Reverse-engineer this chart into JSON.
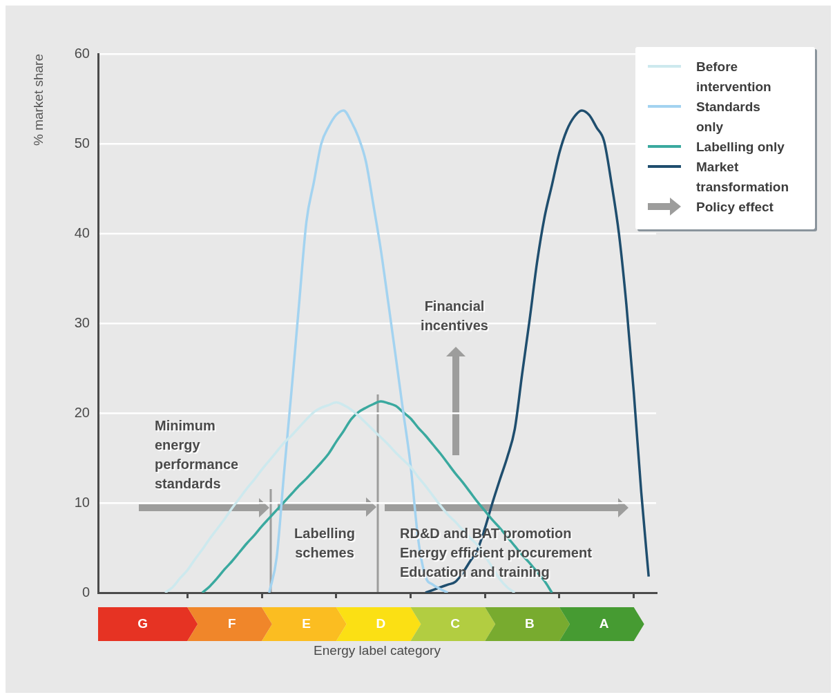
{
  "chart_data": {
    "type": "line",
    "xlabel": "Energy label category",
    "ylabel": "% market share",
    "categories": [
      null,
      null,
      null,
      null,
      null,
      null,
      "G",
      null,
      null,
      null,
      null,
      null,
      null,
      null,
      null,
      null,
      null,
      null,
      "F",
      null,
      null,
      null,
      null,
      null,
      null,
      null,
      null,
      null,
      "E",
      null,
      null,
      null,
      null,
      null,
      null,
      null,
      null,
      null,
      "D",
      null,
      null,
      null,
      null,
      null,
      null,
      null,
      null,
      null,
      "C",
      null,
      null,
      null,
      null,
      null,
      null,
      null,
      null,
      null,
      "B",
      null,
      null,
      null,
      null,
      null,
      null,
      null,
      null,
      null,
      "A",
      null,
      null,
      null,
      null,
      null,
      null,
      null
    ],
    "ylim": [
      0,
      60
    ],
    "yticks": [
      0,
      10,
      20,
      30,
      40,
      50,
      60
    ],
    "grid": "y",
    "legend": "top right",
    "series": [
      {
        "name": "Before intervention",
        "color": "#cde9ee",
        "values": [
          null,
          null,
          null,
          null,
          null,
          null,
          null,
          null,
          null,
          0,
          0.6,
          1.6,
          2.5,
          3.7,
          4.8,
          6.0,
          7.1,
          8.2,
          9.4,
          10.5,
          11.6,
          12.6,
          13.7,
          14.7,
          15.7,
          16.7,
          17.5,
          18.4,
          19.3,
          20.1,
          20.6,
          20.9,
          21.2,
          20.9,
          20.4,
          19.7,
          18.9,
          18.1,
          17.3,
          16.5,
          15.6,
          14.8,
          14.0,
          12.9,
          11.9,
          10.8,
          9.7,
          8.7,
          7.9,
          7.0,
          6.1,
          5.3,
          4.1,
          2.8,
          1.5,
          0.6,
          0,
          null,
          null,
          null,
          null,
          null,
          null,
          null,
          null,
          null,
          null,
          null,
          null,
          null,
          null,
          null,
          null,
          null,
          null,
          null
        ]
      },
      {
        "name": "Standards only",
        "color": "#a3d3f0",
        "values": [
          null,
          null,
          null,
          null,
          null,
          null,
          null,
          null,
          null,
          null,
          null,
          null,
          null,
          null,
          null,
          null,
          null,
          null,
          null,
          null,
          null,
          null,
          null,
          0,
          3.9,
          13.4,
          22.5,
          32,
          41.3,
          45.7,
          50,
          51.9,
          53.2,
          53.7,
          52.5,
          50.7,
          48,
          43.2,
          38.2,
          32.3,
          26.3,
          20.2,
          14.2,
          6.1,
          1.8,
          0.9,
          0.4,
          0,
          null,
          null,
          null,
          null,
          null,
          null,
          null,
          null,
          null,
          null,
          null,
          null,
          null,
          null,
          null,
          null,
          null,
          null,
          null,
          null,
          null,
          null,
          null,
          null,
          null,
          null,
          null,
          null
        ]
      },
      {
        "name": "Labelling only",
        "color": "#3aa99f",
        "values": [
          null,
          null,
          null,
          null,
          null,
          null,
          null,
          null,
          null,
          null,
          null,
          null,
          null,
          null,
          0,
          0.7,
          1.6,
          2.6,
          3.5,
          4.5,
          5.5,
          6.4,
          7.4,
          8.3,
          9.2,
          10.1,
          11.0,
          11.9,
          12.7,
          13.6,
          14.5,
          15.5,
          16.8,
          18.0,
          19.3,
          20.1,
          20.6,
          21.0,
          21.3,
          21.1,
          20.8,
          20.1,
          19.4,
          18.4,
          17.5,
          16.5,
          15.5,
          14.4,
          13.3,
          12.3,
          11.2,
          10.1,
          9.1,
          8.1,
          7.2,
          6.2,
          5.2,
          4.2,
          3.3,
          2.3,
          1.3,
          0,
          null,
          null,
          null,
          null,
          null,
          null,
          null,
          null,
          null,
          null,
          null,
          null,
          null,
          null
        ]
      },
      {
        "name": "Market transformation",
        "color": "#1f4e6e",
        "values": [
          null,
          null,
          null,
          null,
          null,
          null,
          null,
          null,
          null,
          null,
          null,
          null,
          null,
          null,
          null,
          null,
          null,
          null,
          null,
          null,
          null,
          null,
          null,
          null,
          null,
          null,
          null,
          null,
          null,
          null,
          null,
          null,
          null,
          null,
          null,
          null,
          null,
          null,
          null,
          null,
          null,
          null,
          null,
          null,
          0,
          0.3,
          0.6,
          0.9,
          1.2,
          2.2,
          3.5,
          4.8,
          7.2,
          10.0,
          12.6,
          15.1,
          18.2,
          24.4,
          30.4,
          36.8,
          41.8,
          45.4,
          49.0,
          51.5,
          53.0,
          53.7,
          53.2,
          51.8,
          50.3,
          45.6,
          40,
          32.1,
          22.3,
          11.2,
          1.8,
          null
        ]
      }
    ],
    "annotations": [
      "Policy effect",
      "Financial incentives",
      "Minimum energy performance standards",
      "Labelling schemes",
      "RD&D and BAT promotion\nEnergy efficient procurement\nEducation and training"
    ]
  }
}
